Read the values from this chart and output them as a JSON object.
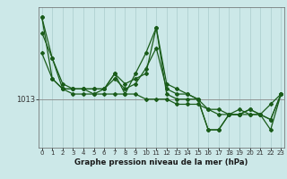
{
  "background_color": "#cce8e8",
  "plot_bg_color": "#cce8e8",
  "grid_color": "#aacccc",
  "line_color": "#1a5c1a",
  "marker_color": "#1a5c1a",
  "xlabel": "Graphe pression niveau de la mer (hPa)",
  "ylabel_tick": "1013",
  "x_ticks": [
    0,
    1,
    2,
    3,
    4,
    5,
    6,
    7,
    8,
    9,
    10,
    11,
    12,
    13,
    14,
    15,
    16,
    17,
    18,
    19,
    20,
    21,
    22,
    23
  ],
  "xlim": [
    -0.3,
    23.3
  ],
  "ylim": [
    1003.5,
    1031
  ],
  "ytick_val": 1013,
  "series": [
    [
      1029,
      1021,
      1015,
      1014,
      1014,
      1014,
      1014,
      1014,
      1014,
      1014,
      1013,
      1013,
      1013,
      1012,
      1012,
      1012,
      1011,
      1010,
      1010,
      1010,
      1010,
      1010,
      1009,
      1014
    ],
    [
      1022,
      1017,
      1015,
      1015,
      1015,
      1014,
      1015,
      1017,
      1015,
      1016,
      1019,
      1023,
      1015,
      1014,
      1014,
      1013,
      1011,
      1011,
      1010,
      1010,
      1011,
      1010,
      1012,
      1014
    ],
    [
      1026,
      1021,
      1016,
      1015,
      1015,
      1015,
      1015,
      1018,
      1016,
      1017,
      1018,
      1027,
      1016,
      1015,
      1014,
      1013,
      1007,
      1007,
      1010,
      1010,
      1011,
      1010,
      1009,
      1014
    ],
    [
      1029,
      1017,
      1015,
      1015,
      1015,
      1015,
      1015,
      1018,
      1014,
      1018,
      1022,
      1027,
      1014,
      1013,
      1013,
      1013,
      1007,
      1007,
      1010,
      1011,
      1010,
      1010,
      1007,
      1014
    ]
  ]
}
